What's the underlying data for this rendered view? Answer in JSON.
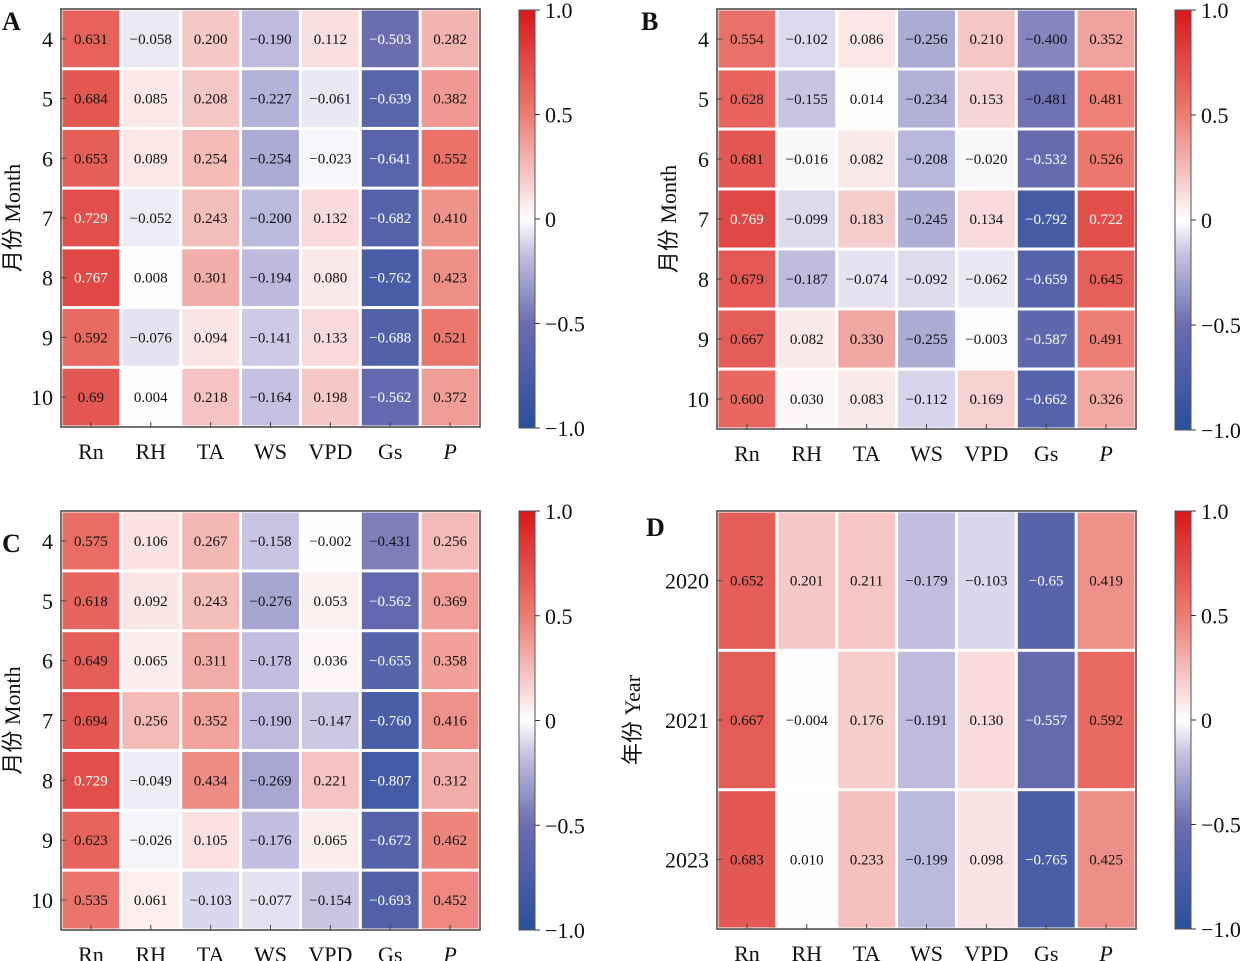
{
  "chart_data": [
    {
      "panel": "A",
      "type": "heatmap",
      "title": "",
      "xlabel": "",
      "ylabel": "月份 Month",
      "x_categories": [
        "Rn",
        "RH",
        "TA",
        "WS",
        "VPD",
        "Gs",
        "P"
      ],
      "y_categories": [
        "4",
        "5",
        "6",
        "7",
        "8",
        "9",
        "10"
      ],
      "values": [
        [
          "0.631",
          "−0.058",
          "0.200",
          "−0.190",
          "0.112",
          "−0.503",
          "0.282"
        ],
        [
          "0.684",
          "0.085",
          "0.208",
          "−0.227",
          "−0.061",
          "−0.639",
          "0.382"
        ],
        [
          "0.653",
          "0.089",
          "0.254",
          "−0.254",
          "−0.023",
          "−0.641",
          "0.552"
        ],
        [
          "0.729",
          "−0.052",
          "0.243",
          "−0.200",
          "0.132",
          "−0.682",
          "0.410"
        ],
        [
          "0.767",
          "0.008",
          "0.301",
          "−0.194",
          "0.080",
          "−0.762",
          "0.423"
        ],
        [
          "0.592",
          "−0.076",
          "0.094",
          "−0.141",
          "0.133",
          "−0.688",
          "0.521"
        ],
        [
          "0.69",
          "0.004",
          "0.218",
          "−0.164",
          "0.198",
          "−0.562",
          "0.372"
        ]
      ],
      "colorbar": {
        "range": [
          -1.0,
          1.0
        ],
        "ticks": [
          "1.0",
          "0.5",
          "0",
          "−0.5",
          "−1.0"
        ],
        "tick_values": [
          1.0,
          0.5,
          0,
          -0.5,
          -1.0
        ]
      }
    },
    {
      "panel": "B",
      "type": "heatmap",
      "title": "",
      "xlabel": "",
      "ylabel": "月份 Month",
      "x_categories": [
        "Rn",
        "RH",
        "TA",
        "WS",
        "VPD",
        "Gs",
        "P"
      ],
      "y_categories": [
        "4",
        "5",
        "6",
        "7",
        "8",
        "9",
        "10"
      ],
      "values": [
        [
          "0.554",
          "−0.102",
          "0.086",
          "−0.256",
          "0.210",
          "−0.400",
          "0.352"
        ],
        [
          "0.628",
          "−0.155",
          "0.014",
          "−0.234",
          "0.153",
          "−0.481",
          "0.481"
        ],
        [
          "0.681",
          "−0.016",
          "0.082",
          "−0.208",
          "−0.020",
          "−0.532",
          "0.526"
        ],
        [
          "0.769",
          "−0.099",
          "0.183",
          "−0.245",
          "0.134",
          "−0.792",
          "0.722"
        ],
        [
          "0.679",
          "−0.187",
          "−0.074",
          "−0.092",
          "−0.062",
          "−0.659",
          "0.645"
        ],
        [
          "0.667",
          "0.082",
          "0.330",
          "−0.255",
          "−0.003",
          "−0.587",
          "0.491"
        ],
        [
          "0.600",
          "0.030",
          "0.083",
          "−0.112",
          "0.169",
          "−0.662",
          "0.326"
        ]
      ],
      "colorbar": {
        "range": [
          -1.0,
          1.0
        ],
        "ticks": [
          "1.0",
          "0.5",
          "0",
          "−0.5",
          "−1.0"
        ],
        "tick_values": [
          1.0,
          0.5,
          0,
          -0.5,
          -1.0
        ]
      }
    },
    {
      "panel": "C",
      "type": "heatmap",
      "title": "",
      "xlabel": "",
      "ylabel": "月份 Month",
      "x_categories": [
        "Rn",
        "RH",
        "TA",
        "WS",
        "VPD",
        "Gs",
        "P"
      ],
      "y_categories": [
        "4",
        "5",
        "6",
        "7",
        "8",
        "9",
        "10"
      ],
      "values": [
        [
          "0.575",
          "0.106",
          "0.267",
          "−0.158",
          "−0.002",
          "−0.431",
          "0.256"
        ],
        [
          "0.618",
          "0.092",
          "0.243",
          "−0.276",
          "0.053",
          "−0.562",
          "0.369"
        ],
        [
          "0.649",
          "0.065",
          "0.311",
          "−0.178",
          "0.036",
          "−0.655",
          "0.358"
        ],
        [
          "0.694",
          "0.256",
          "0.352",
          "−0.190",
          "−0.147",
          "−0.760",
          "0.416"
        ],
        [
          "0.729",
          "−0.049",
          "0.434",
          "−0.269",
          "0.221",
          "−0.807",
          "0.312"
        ],
        [
          "0.623",
          "−0.026",
          "0.105",
          "−0.176",
          "0.065",
          "−0.672",
          "0.462"
        ],
        [
          "0.535",
          "0.061",
          "−0.103",
          "−0.077",
          "−0.154",
          "−0.693",
          "0.452"
        ]
      ],
      "colorbar": {
        "range": [
          -1.0,
          1.0
        ],
        "ticks": [
          "1.0",
          "0.5",
          "0",
          "−0.5",
          "−1.0"
        ],
        "tick_values": [
          1.0,
          0.5,
          0,
          -0.5,
          -1.0
        ]
      }
    },
    {
      "panel": "D",
      "type": "heatmap",
      "title": "",
      "xlabel": "",
      "ylabel": "年份 Year",
      "x_categories": [
        "Rn",
        "RH",
        "TA",
        "WS",
        "VPD",
        "Gs",
        "P"
      ],
      "y_categories": [
        "2020",
        "2021",
        "2023"
      ],
      "values": [
        [
          "0.652",
          "0.201",
          "0.211",
          "−0.179",
          "−0.103",
          "−0.65",
          "0.419"
        ],
        [
          "0.667",
          "−0.004",
          "0.176",
          "−0.191",
          "0.130",
          "−0.557",
          "0.592"
        ],
        [
          "0.683",
          "0.010",
          "0.233",
          "−0.199",
          "0.098",
          "−0.765",
          "0.425"
        ]
      ],
      "colorbar": {
        "range": [
          -1.0,
          1.0
        ],
        "ticks": [
          "1.0",
          "0.5",
          "0",
          "−0.5",
          "−1.0"
        ],
        "tick_values": [
          1.0,
          0.5,
          0,
          -0.5,
          -1.0
        ]
      }
    }
  ],
  "colormap": {
    "name": "coolwarm-like",
    "low": "#2b4e9b",
    "mid": "#ffffff",
    "high": "#d7191c"
  },
  "italic_categories": [
    "P"
  ]
}
